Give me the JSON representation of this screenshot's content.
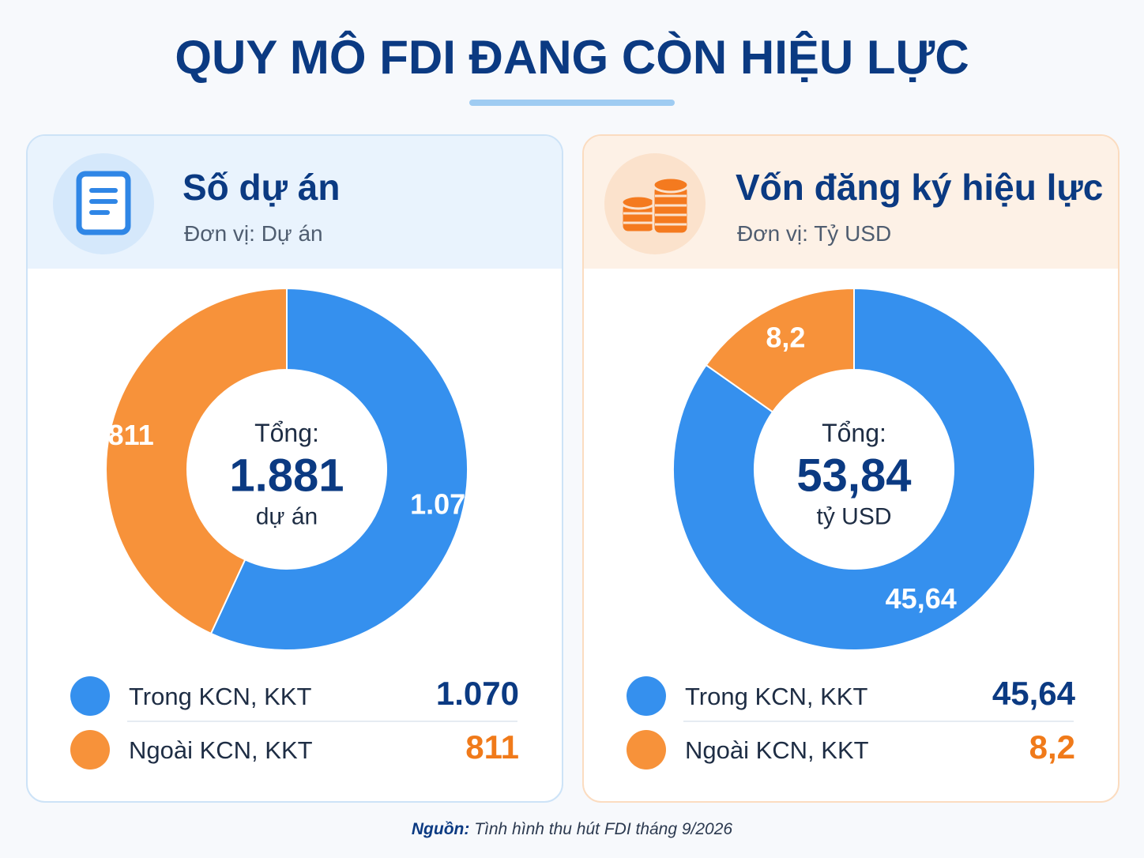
{
  "title": "QUY MÔ FDI ĐANG CÒN HIỆU LỰC",
  "source": {
    "label": "Nguồn:",
    "text": "Tình hình thu hút FDI tháng 9/2026"
  },
  "colors": {
    "blue": "#3590ee",
    "orange": "#f7923a",
    "navy": "#0b3a82",
    "blue_text": "#0b3a82",
    "orange_text": "#f07a1a"
  },
  "panels": [
    {
      "title": "Số dự án",
      "unit": "Đơn vị: Dự án",
      "icon": "document-icon",
      "center": {
        "label": "Tổng:",
        "value": "1.881",
        "unit": "dự án"
      },
      "legend": [
        {
          "label": "Trong KCN, KKT",
          "value": "1.070"
        },
        {
          "label": "Ngoài KCN, KKT",
          "value": "811"
        }
      ]
    },
    {
      "title": "Vốn đăng ký hiệu lực",
      "unit": "Đơn vị: Tỷ USD",
      "icon": "coins-icon",
      "center": {
        "label": "Tổng:",
        "value": "53,84",
        "unit": "tỷ USD"
      },
      "legend": [
        {
          "label": "Trong KCN, KKT",
          "value": "45,64"
        },
        {
          "label": "Ngoài KCN, KKT",
          "value": "8,2"
        }
      ]
    }
  ],
  "chart_data": [
    {
      "type": "pie",
      "title": "Số dự án",
      "categories": [
        "Trong KCN, KKT",
        "Ngoài KCN, KKT"
      ],
      "values": [
        1070,
        811
      ],
      "labels": [
        "1.070",
        "811"
      ],
      "total": 1881,
      "colors": [
        "#3590ee",
        "#f7923a"
      ]
    },
    {
      "type": "pie",
      "title": "Vốn đăng ký hiệu lực",
      "categories": [
        "Trong KCN, KKT",
        "Ngoài KCN, KKT"
      ],
      "values": [
        45.64,
        8.2
      ],
      "labels": [
        "45,64",
        "8,2"
      ],
      "total": 53.84,
      "colors": [
        "#3590ee",
        "#f7923a"
      ]
    }
  ]
}
